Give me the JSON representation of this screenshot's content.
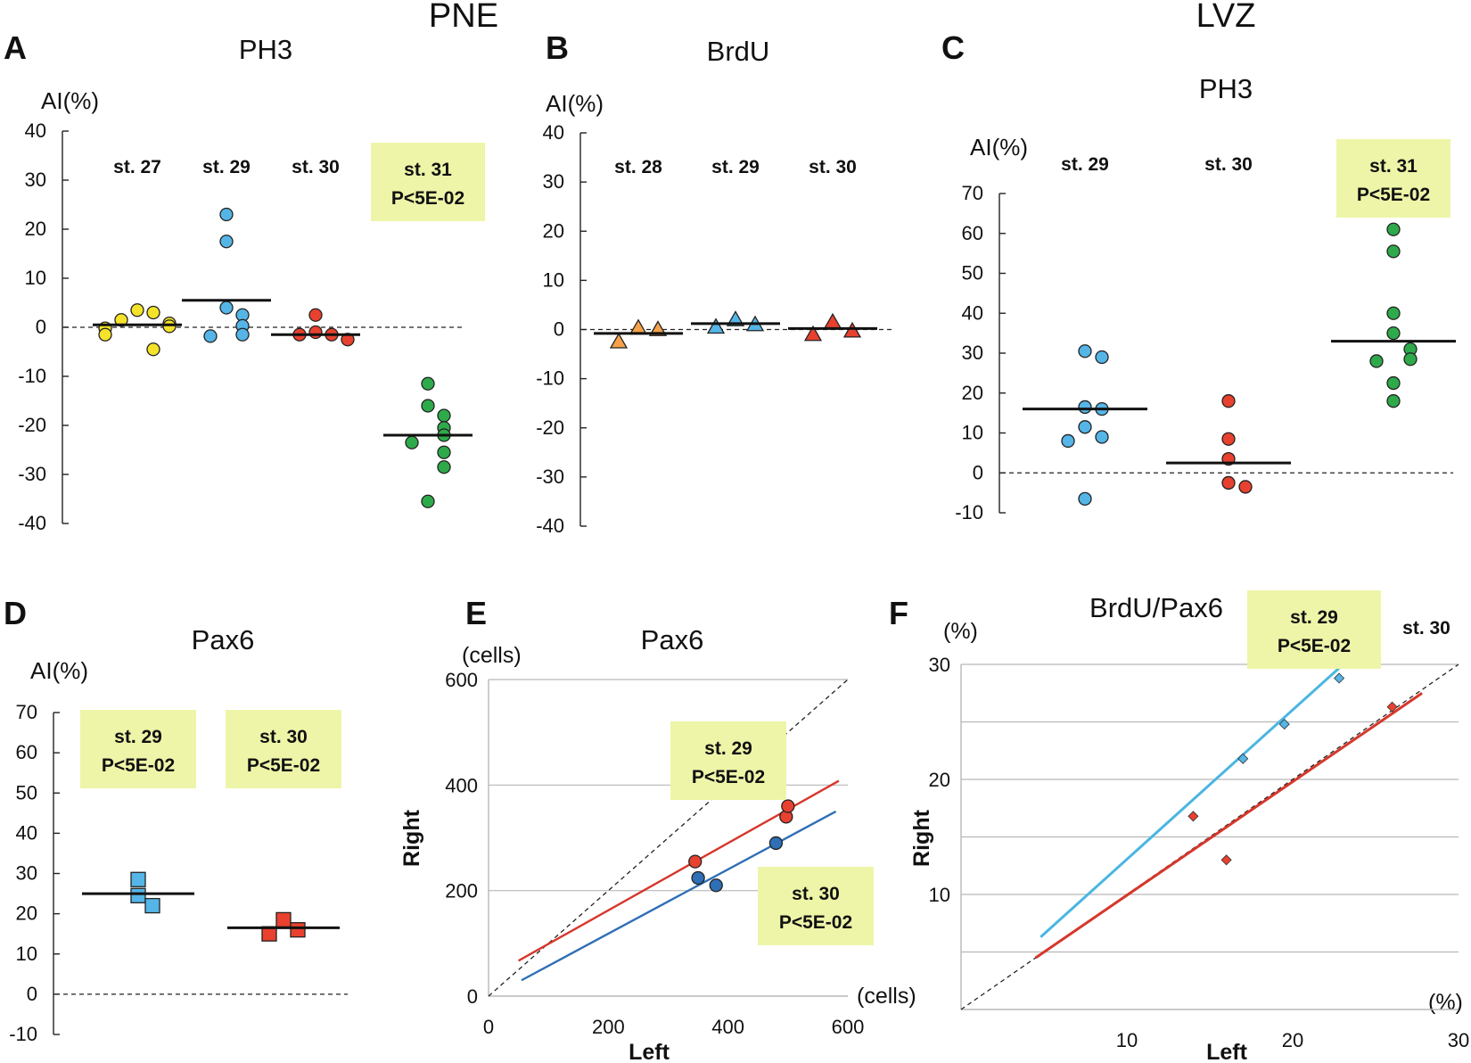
{
  "figure": {
    "regions": {
      "pne": "PNE",
      "lvz": "LVZ"
    },
    "colors": {
      "yellow": "#f5e32a",
      "blue": "#55b5e6",
      "red": "#e8412f",
      "green": "#2eaa4a",
      "orange": "#f5a24a",
      "dark_blue": "#2f6fb5",
      "box": "#eef5a8",
      "line_red": "#d6372b",
      "line_blue": "#2f6fb5",
      "line_light_blue": "#4ab6e0",
      "grid": "#b8b8b8"
    }
  },
  "chart_data": [
    {
      "id": "A",
      "type": "scatter",
      "letter": "A",
      "title": "PH3",
      "ylabel": "AI(%)",
      "ylim": [
        -40,
        40
      ],
      "yticks": [
        40,
        30,
        20,
        10,
        0,
        -10,
        -20,
        -30,
        -40
      ],
      "stages": [
        "st. 27",
        "st. 29",
        "st. 30",
        "st. 31"
      ],
      "significance": "P<5E-02",
      "groups": [
        {
          "stage": "st. 27",
          "color": "yellow",
          "mean": 0.5,
          "values": [
            3.5,
            3.0,
            1.5,
            0.8,
            0.2,
            -0.2,
            -1.5,
            -4.5
          ]
        },
        {
          "stage": "st. 29",
          "color": "blue",
          "mean": 5.5,
          "values": [
            23,
            17.5,
            4,
            2.5,
            0.3,
            -1.5,
            -1.8
          ]
        },
        {
          "stage": "st. 30",
          "color": "red",
          "mean": -1.5,
          "values": [
            2.5,
            -1.0,
            -1.5,
            -2.5,
            -1.5
          ]
        },
        {
          "stage": "st. 31",
          "color": "green",
          "mean": -22,
          "significant": true,
          "values": [
            -11.5,
            -16,
            -18,
            -20.5,
            -22,
            -23.5,
            -25.5,
            -28.5,
            -35.5
          ]
        }
      ]
    },
    {
      "id": "B",
      "type": "scatter",
      "letter": "B",
      "title": "BrdU",
      "ylabel": "AI(%)",
      "ylim": [
        -40,
        40
      ],
      "yticks": [
        40,
        30,
        20,
        10,
        0,
        -10,
        -20,
        -30,
        -40
      ],
      "stages": [
        "st. 28",
        "st. 29",
        "st. 30"
      ],
      "groups": [
        {
          "stage": "st. 28",
          "color": "orange",
          "mean": -0.8,
          "values": [
            0.3,
            0.0,
            -2.5
          ]
        },
        {
          "stage": "st. 29",
          "color": "blue",
          "mean": 1.2,
          "values": [
            2.0,
            1.0,
            0.5
          ]
        },
        {
          "stage": "st. 30",
          "color": "red",
          "mean": 0.2,
          "values": [
            1.5,
            -0.3,
            -1.0
          ]
        }
      ]
    },
    {
      "id": "C",
      "type": "scatter",
      "letter": "C",
      "title": "PH3",
      "ylabel": "AI(%)",
      "ylim": [
        -10,
        70
      ],
      "yticks": [
        70,
        60,
        50,
        40,
        30,
        20,
        10,
        0,
        -10
      ],
      "stages": [
        "st. 29",
        "st. 30",
        "st. 31"
      ],
      "significance": "P<5E-02",
      "groups": [
        {
          "stage": "st. 29",
          "color": "blue",
          "mean": 16,
          "values": [
            30.5,
            29,
            16.5,
            16,
            11.5,
            9,
            8,
            -6.5
          ]
        },
        {
          "stage": "st. 30",
          "color": "red",
          "mean": 2.5,
          "values": [
            18,
            8.5,
            3.5,
            -2.5,
            -3.5
          ]
        },
        {
          "stage": "st. 31",
          "color": "green",
          "mean": 33,
          "significant": true,
          "values": [
            61,
            55.5,
            40,
            35,
            31,
            28.5,
            28,
            22.5,
            18
          ]
        }
      ]
    },
    {
      "id": "D",
      "type": "scatter",
      "letter": "D",
      "title": "Pax6",
      "ylabel": "AI(%)",
      "ylim": [
        -10,
        70
      ],
      "yticks": [
        70,
        60,
        50,
        40,
        30,
        20,
        10,
        0,
        -10
      ],
      "stages": [
        "st. 29",
        "st. 30"
      ],
      "significance": "P<5E-02",
      "groups": [
        {
          "stage": "st. 29",
          "color": "blue",
          "mean": 25,
          "significant": true,
          "values": [
            28.5,
            24.5,
            22
          ]
        },
        {
          "stage": "st. 30",
          "color": "red",
          "mean": 16.5,
          "significant": true,
          "values": [
            18.5,
            16,
            15
          ]
        }
      ]
    },
    {
      "id": "E",
      "type": "scatter",
      "letter": "E",
      "title": "Pax6",
      "xlabel": "Left",
      "ylabel": "Right",
      "xunit": "(cells)",
      "yunit": "(cells)",
      "xlim": [
        0,
        600
      ],
      "ylim": [
        0,
        600
      ],
      "xticks": [
        0,
        200,
        400,
        600
      ],
      "yticks": [
        0,
        200,
        400,
        600
      ],
      "significance": "P<5E-02",
      "series": [
        {
          "name": "st. 29",
          "color": "red",
          "line_color": "line_red",
          "points": [
            [
              345,
              255
            ],
            [
              497,
              340
            ],
            [
              500,
              360
            ]
          ],
          "fit": [
            [
              50,
              67
            ],
            [
              585,
              408
            ]
          ]
        },
        {
          "name": "st. 30",
          "color": "dark_blue",
          "line_color": "line_blue",
          "points": [
            [
              350,
              224
            ],
            [
              380,
              210
            ],
            [
              480,
              290
            ]
          ],
          "fit": [
            [
              55,
              30
            ],
            [
              580,
              350
            ]
          ]
        }
      ]
    },
    {
      "id": "F",
      "type": "scatter",
      "letter": "F",
      "title": "BrdU/Pax6",
      "xlabel": "Left",
      "ylabel": "Right",
      "xunit": "(%)",
      "yunit": "(%)",
      "xlim": [
        0,
        30
      ],
      "ylim": [
        0,
        30
      ],
      "xticks": [
        10,
        20,
        30
      ],
      "yticks": [
        10,
        20,
        30
      ],
      "significance": "P<5E-02",
      "series": [
        {
          "name": "st. 29",
          "color": "blue",
          "line_color": "line_light_blue",
          "significant": true,
          "points": [
            [
              17,
              21.8
            ],
            [
              19.5,
              24.8
            ],
            [
              22.8,
              28.8
            ]
          ],
          "fit": [
            [
              4.8,
              6.3
            ],
            [
              24.2,
              31.5
            ]
          ]
        },
        {
          "name": "st. 30",
          "color": "red",
          "line_color": "line_red",
          "points": [
            [
              14,
              16.8
            ],
            [
              16,
              13
            ],
            [
              26,
              26.3
            ]
          ],
          "fit": [
            [
              4.5,
              4.5
            ],
            [
              27.8,
              27.5
            ]
          ]
        }
      ]
    }
  ]
}
